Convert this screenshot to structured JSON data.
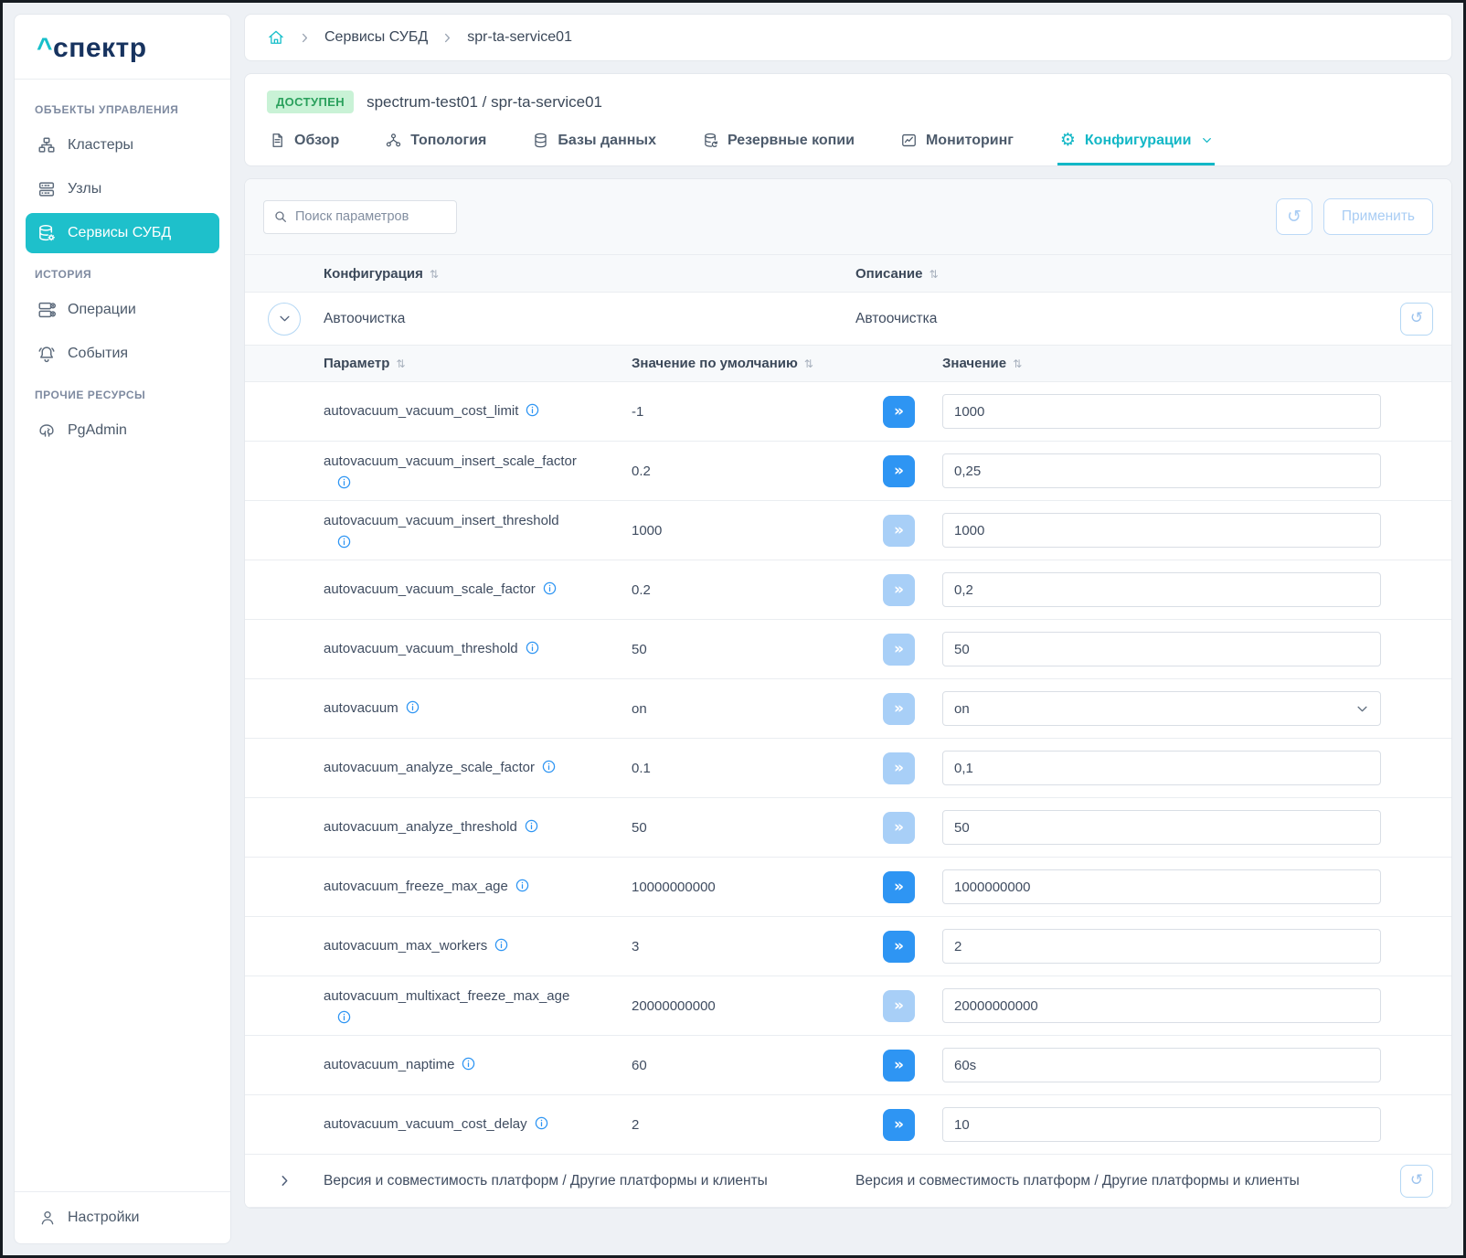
{
  "app": {
    "logo_caret": "^",
    "logo_text": "спектр"
  },
  "sidebar": {
    "sections": [
      {
        "title": "ОБЪЕКТЫ УПРАВЛЕНИЯ",
        "items": [
          {
            "label": "Кластеры",
            "icon": "clusters-icon",
            "active": false
          },
          {
            "label": "Узлы",
            "icon": "nodes-icon",
            "active": false
          },
          {
            "label": "Сервисы СУБД",
            "icon": "db-services-icon",
            "active": true
          }
        ]
      },
      {
        "title": "ИСТОРИЯ",
        "items": [
          {
            "label": "Операции",
            "icon": "operations-icon",
            "active": false
          },
          {
            "label": "События",
            "icon": "events-icon",
            "active": false
          }
        ]
      },
      {
        "title": "ПРОЧИЕ РЕСУРСЫ",
        "items": [
          {
            "label": "PgAdmin",
            "icon": "pgadmin-icon",
            "active": false
          }
        ]
      }
    ],
    "footer": {
      "label": "Настройки",
      "icon": "user-icon"
    }
  },
  "breadcrumb": {
    "items": [
      "Сервисы СУБД",
      "spr-ta-service01"
    ]
  },
  "service_header": {
    "status": "ДОСТУПЕН",
    "title": "spectrum-test01 /  spr-ta-service01"
  },
  "tabs": [
    {
      "label": "Обзор",
      "icon": "document-icon",
      "active": false
    },
    {
      "label": "Топология",
      "icon": "topology-icon",
      "active": false
    },
    {
      "label": "Базы данных",
      "icon": "database-icon",
      "active": false
    },
    {
      "label": "Резервные копии",
      "icon": "backup-icon",
      "active": false
    },
    {
      "label": "Мониторинг",
      "icon": "monitoring-icon",
      "active": false
    },
    {
      "label": "Конфигурации",
      "icon": "gear-icon",
      "active": true
    }
  ],
  "toolbar": {
    "search_placeholder": "Поиск параметров",
    "apply_label": "Применить"
  },
  "table": {
    "columns": {
      "config": "Конфигурация",
      "description": "Описание"
    },
    "param_columns": {
      "name": "Параметр",
      "default": "Значение по умолчанию",
      "value": "Значение"
    },
    "groups": [
      {
        "name": "Автоочистка",
        "description": "Автоочистка",
        "expanded": true,
        "params": [
          {
            "name": "autovacuum_vacuum_cost_limit",
            "default": "-1",
            "value": "1000",
            "changed": true,
            "control": "input",
            "info_wrap": false
          },
          {
            "name": "autovacuum_vacuum_insert_scale_factor",
            "default": "0.2",
            "value": "0,25",
            "changed": true,
            "control": "input",
            "info_wrap": true
          },
          {
            "name": "autovacuum_vacuum_insert_threshold",
            "default": "1000",
            "value": "1000",
            "changed": false,
            "control": "input",
            "info_wrap": true
          },
          {
            "name": "autovacuum_vacuum_scale_factor",
            "default": "0.2",
            "value": "0,2",
            "changed": false,
            "control": "input",
            "info_wrap": false
          },
          {
            "name": "autovacuum_vacuum_threshold",
            "default": "50",
            "value": "50",
            "changed": false,
            "control": "input",
            "info_wrap": false
          },
          {
            "name": "autovacuum",
            "default": "on",
            "value": "on",
            "changed": false,
            "control": "select",
            "info_wrap": false
          },
          {
            "name": "autovacuum_analyze_scale_factor",
            "default": "0.1",
            "value": "0,1",
            "changed": false,
            "control": "input",
            "info_wrap": false
          },
          {
            "name": "autovacuum_analyze_threshold",
            "default": "50",
            "value": "50",
            "changed": false,
            "control": "input",
            "info_wrap": false
          },
          {
            "name": "autovacuum_freeze_max_age",
            "default": "10000000000",
            "value": "1000000000",
            "changed": true,
            "control": "input",
            "info_wrap": false
          },
          {
            "name": "autovacuum_max_workers",
            "default": "3",
            "value": "2",
            "changed": true,
            "control": "input",
            "info_wrap": false
          },
          {
            "name": "autovacuum_multixact_freeze_max_age",
            "default": "20000000000",
            "value": "20000000000",
            "changed": false,
            "control": "input",
            "info_wrap": true
          },
          {
            "name": "autovacuum_naptime",
            "default": "60",
            "value": "60s",
            "changed": true,
            "control": "input",
            "info_wrap": false
          },
          {
            "name": "autovacuum_vacuum_cost_delay",
            "default": "2",
            "value": "10",
            "changed": true,
            "control": "input",
            "info_wrap": false
          }
        ]
      },
      {
        "name": "Версия и совместимость платформ / Другие платформы и клиенты",
        "description": "Версия и совместимость платформ / Другие платформы и клиенты",
        "expanded": false,
        "params": []
      }
    ]
  },
  "colors": {
    "accent_teal": "#1ec0cb",
    "brand_navy": "#17335f",
    "primary_blue": "#2e95f3",
    "primary_blue_muted": "#a8cff7",
    "badge_green_bg": "#c9f2d6",
    "badge_green_text": "#2aa05c",
    "page_background": "#eef1f5"
  }
}
